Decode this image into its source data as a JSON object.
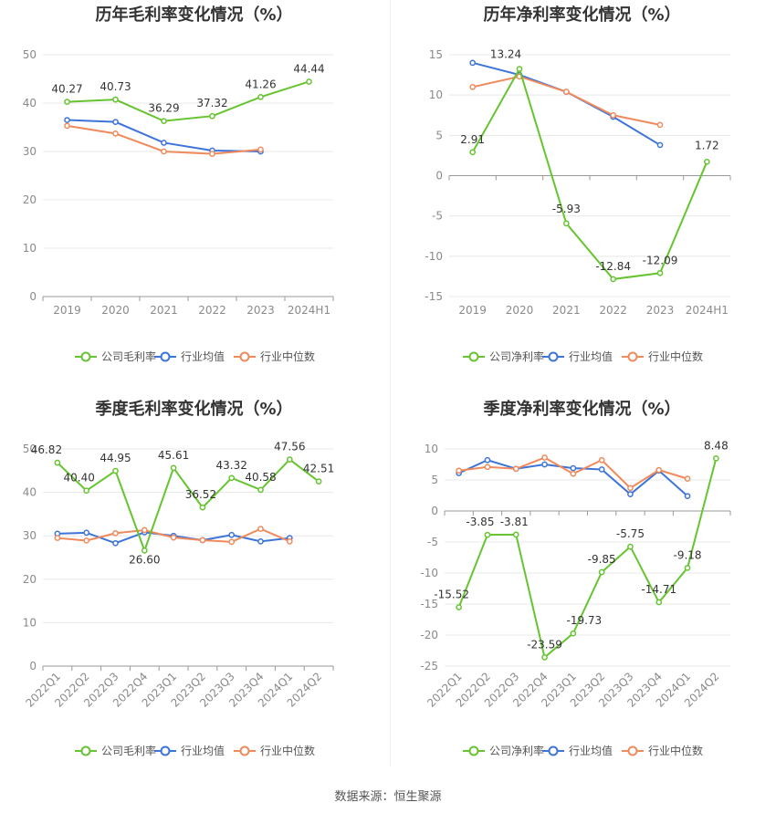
{
  "footer": {
    "source": "数据来源：恒生聚源"
  },
  "colors": {
    "company": "#66c430",
    "industry_avg": "#3d74d9",
    "industry_median": "#f08a5d",
    "grid": "#e8e8e8",
    "axis": "#999999"
  },
  "legend": {
    "gross": [
      "公司毛利率",
      "行业均值",
      "行业中位数"
    ],
    "net": [
      "公司净利率",
      "行业均值",
      "行业中位数"
    ]
  },
  "chart_data": [
    {
      "type": "line",
      "title": "历年毛利率变化情况（%）",
      "categories": [
        "2019",
        "2020",
        "2021",
        "2022",
        "2023",
        "2024H1"
      ],
      "ylim": [
        0,
        50
      ],
      "yticks": [
        0,
        10,
        20,
        30,
        40,
        50
      ],
      "grid": true,
      "legend_position": "bottom",
      "series": [
        {
          "name": "公司毛利率",
          "values": [
            40.27,
            40.73,
            36.29,
            37.32,
            41.26,
            44.44
          ],
          "labels": true
        },
        {
          "name": "行业均值",
          "values": [
            36.5,
            36.1,
            31.8,
            30.2,
            30.0,
            null
          ]
        },
        {
          "name": "行业中位数",
          "values": [
            35.3,
            33.7,
            30.0,
            29.5,
            30.4,
            null
          ]
        }
      ]
    },
    {
      "type": "line",
      "title": "历年净利率变化情况（%）",
      "categories": [
        "2019",
        "2020",
        "2021",
        "2022",
        "2023",
        "2024H1"
      ],
      "ylim": [
        -15,
        15
      ],
      "yticks": [
        -15,
        -10,
        -5,
        0,
        5,
        10,
        15
      ],
      "grid": true,
      "legend_position": "bottom",
      "series": [
        {
          "name": "公司净利率",
          "values": [
            2.91,
            13.24,
            -5.93,
            -12.84,
            -12.09,
            1.72
          ],
          "labels": true
        },
        {
          "name": "行业均值",
          "values": [
            14.0,
            12.5,
            10.4,
            7.3,
            3.8,
            null
          ]
        },
        {
          "name": "行业中位数",
          "values": [
            11.0,
            12.3,
            10.4,
            7.5,
            6.3,
            null
          ]
        }
      ]
    },
    {
      "type": "line",
      "title": "季度毛利率变化情况（%）",
      "categories": [
        "2022Q1",
        "2022Q2",
        "2022Q3",
        "2022Q4",
        "2023Q1",
        "2023Q2",
        "2023Q3",
        "2023Q4",
        "2024Q1",
        "2024Q2"
      ],
      "ylim": [
        0,
        50
      ],
      "yticks": [
        0,
        10,
        20,
        30,
        40,
        50
      ],
      "grid": true,
      "legend_position": "bottom",
      "series": [
        {
          "name": "公司毛利率",
          "values": [
            46.82,
            40.4,
            44.95,
            26.6,
            45.61,
            36.52,
            43.32,
            40.58,
            47.56,
            42.51
          ],
          "labels": true
        },
        {
          "name": "行业均值",
          "values": [
            30.5,
            30.7,
            28.3,
            30.8,
            30.0,
            29.0,
            30.2,
            28.7,
            29.5,
            null
          ]
        },
        {
          "name": "行业中位数",
          "values": [
            29.5,
            28.9,
            30.6,
            31.3,
            29.6,
            29.0,
            28.6,
            31.6,
            28.7,
            null
          ]
        }
      ]
    },
    {
      "type": "line",
      "title": "季度净利率变化情况（%）",
      "categories": [
        "2022Q1",
        "2022Q2",
        "2022Q3",
        "2022Q4",
        "2023Q1",
        "2023Q2",
        "2023Q3",
        "2023Q4",
        "2024Q1",
        "2024Q2"
      ],
      "ylim": [
        -25,
        10
      ],
      "yticks": [
        -25,
        -20,
        -15,
        -10,
        -5,
        0,
        5,
        10
      ],
      "grid": true,
      "legend_position": "bottom",
      "series": [
        {
          "name": "公司净利率",
          "values": [
            -15.52,
            -3.85,
            -3.81,
            -23.59,
            -19.73,
            -9.85,
            -5.75,
            -14.71,
            -9.18,
            8.48
          ],
          "labels": true
        },
        {
          "name": "行业均值",
          "values": [
            6.1,
            8.2,
            6.8,
            7.5,
            6.9,
            6.7,
            2.7,
            6.5,
            2.4,
            null
          ]
        },
        {
          "name": "行业中位数",
          "values": [
            6.5,
            7.1,
            6.8,
            8.6,
            6.0,
            8.2,
            3.7,
            6.6,
            5.2,
            null
          ]
        }
      ]
    }
  ]
}
